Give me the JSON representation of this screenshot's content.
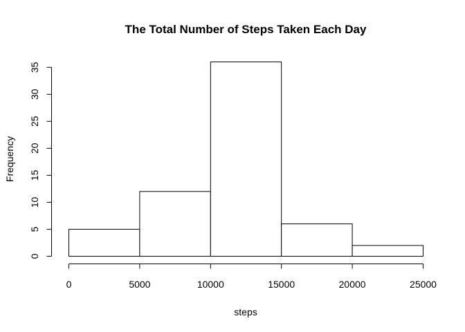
{
  "chart_data": {
    "type": "bar",
    "title": "The Total Number of Steps Taken Each Day",
    "xlabel": "steps",
    "ylabel": "Frequency",
    "bins": [
      {
        "from": 0,
        "to": 5000,
        "count": 5
      },
      {
        "from": 5000,
        "to": 10000,
        "count": 12
      },
      {
        "from": 10000,
        "to": 15000,
        "count": 36
      },
      {
        "from": 15000,
        "to": 20000,
        "count": 6
      },
      {
        "from": 20000,
        "to": 25000,
        "count": 2
      }
    ],
    "xlim": [
      0,
      25000
    ],
    "ylim": [
      0,
      36
    ],
    "x_ticks": [
      0,
      5000,
      10000,
      15000,
      20000,
      25000
    ],
    "y_ticks": [
      0,
      5,
      10,
      15,
      20,
      25,
      30,
      35
    ],
    "grid": false,
    "legend": "none"
  }
}
